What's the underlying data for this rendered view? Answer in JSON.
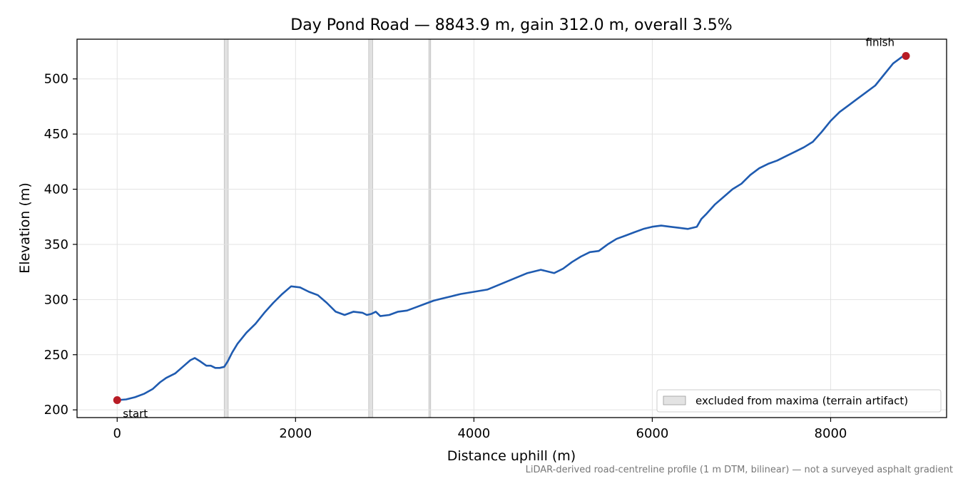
{
  "chart_data": {
    "type": "line",
    "title": "Day Pond Road — 8843.9 m, gain 312.0 m, overall 3.5%",
    "xlabel": "Distance uphill (m)",
    "ylabel": "Elevation (m)",
    "xlim": [
      -450,
      9300
    ],
    "ylim": [
      193,
      536
    ],
    "xticks": [
      0,
      2000,
      4000,
      6000,
      8000
    ],
    "yticks": [
      200,
      250,
      300,
      350,
      400,
      450,
      500
    ],
    "grid": true,
    "legend_position": "bottom-right",
    "legend": [
      {
        "label": "excluded from maxima (terrain artifact)",
        "kind": "shaded-band"
      }
    ],
    "excluded_bands": [
      [
        1200,
        1245
      ],
      [
        2820,
        2865
      ],
      [
        3495,
        3515
      ]
    ],
    "series": [
      {
        "color": "#1f5bb0",
        "x": [
          0,
          100,
          200,
          300,
          400,
          480,
          550,
          650,
          750,
          820,
          870,
          930,
          1000,
          1050,
          1100,
          1150,
          1200,
          1240,
          1290,
          1350,
          1450,
          1550,
          1650,
          1750,
          1850,
          1950,
          2050,
          2150,
          2250,
          2350,
          2450,
          2550,
          2650,
          2750,
          2800,
          2850,
          2900,
          2950,
          3050,
          3150,
          3250,
          3350,
          3450,
          3550,
          3650,
          3750,
          3850,
          4000,
          4150,
          4300,
          4450,
          4600,
          4750,
          4800,
          4900,
          5000,
          5100,
          5200,
          5300,
          5400,
          5500,
          5600,
          5700,
          5800,
          5900,
          6000,
          6100,
          6200,
          6300,
          6400,
          6500,
          6550,
          6600,
          6700,
          6800,
          6900,
          7000,
          7100,
          7200,
          7300,
          7400,
          7500,
          7600,
          7700,
          7800,
          7900,
          8000,
          8100,
          8200,
          8300,
          8400,
          8500,
          8600,
          8700,
          8800,
          8844
        ],
        "values": [
          208.8,
          209.5,
          211.5,
          214.5,
          219,
          225,
          229,
          233,
          240,
          245,
          247,
          244,
          240,
          240,
          238,
          238,
          239,
          244,
          252,
          260,
          270,
          278,
          288,
          297,
          305,
          312,
          311,
          307,
          304,
          297,
          289,
          286,
          289,
          288,
          286,
          287,
          289,
          285,
          286,
          289,
          290,
          293,
          296,
          299,
          301,
          303,
          305,
          307,
          309,
          314,
          319,
          324,
          327,
          326,
          324,
          328,
          334,
          339,
          343,
          344,
          350,
          355,
          358,
          361,
          364,
          366,
          367,
          366,
          365,
          364,
          366,
          373,
          377,
          386,
          393,
          400,
          405,
          413,
          419,
          423,
          426,
          430,
          434,
          438,
          443,
          452,
          462,
          470,
          476,
          482,
          488,
          494,
          504,
          514,
          520,
          521
        ]
      }
    ],
    "markers": [
      {
        "label": "start",
        "x": 0,
        "y": 208.8,
        "color": "#b81c25"
      },
      {
        "label": "finish",
        "x": 8844,
        "y": 520.8,
        "color": "#b81c25"
      }
    ]
  },
  "footnote": "LiDAR-derived road-centreline profile (1 m DTM, bilinear) — not a surveyed asphalt gradient"
}
